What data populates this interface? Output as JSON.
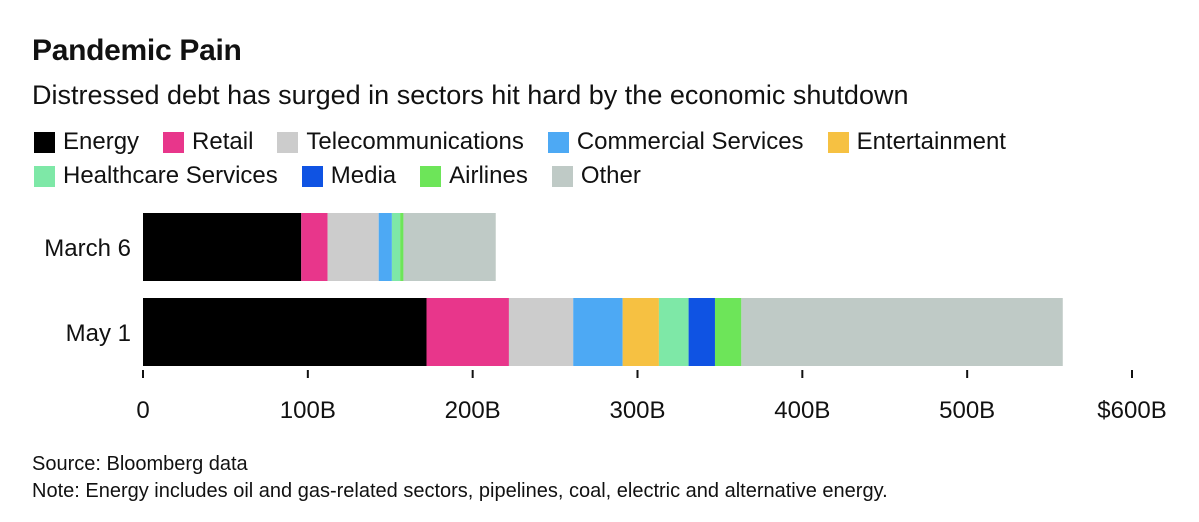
{
  "chart_data": {
    "type": "bar",
    "orientation": "horizontal",
    "stacked": true,
    "title": "Pandemic Pain",
    "subtitle": "Distressed debt has surged in sectors hit hard by the economic shutdown",
    "categories": [
      "March 6",
      "May 1"
    ],
    "series": [
      {
        "name": "Energy",
        "color": "#000000",
        "values": [
          96,
          172
        ]
      },
      {
        "name": "Retail",
        "color": "#e8368b",
        "values": [
          16,
          50
        ]
      },
      {
        "name": "Telecommunications",
        "color": "#cccccc",
        "values": [
          31,
          39
        ]
      },
      {
        "name": "Commercial Services",
        "color": "#4da9f4",
        "values": [
          8,
          30
        ]
      },
      {
        "name": "Entertainment",
        "color": "#f6c142",
        "values": [
          0,
          22
        ]
      },
      {
        "name": "Healthcare Services",
        "color": "#7ee8a7",
        "values": [
          5,
          18
        ]
      },
      {
        "name": "Media",
        "color": "#0f53e3",
        "values": [
          0,
          16
        ]
      },
      {
        "name": "Airlines",
        "color": "#6de559",
        "values": [
          2,
          16
        ]
      },
      {
        "name": "Other",
        "color": "#bfcac6",
        "values": [
          56,
          195
        ]
      }
    ],
    "xlim": [
      0,
      600
    ],
    "xticks": [
      0,
      100,
      200,
      300,
      400,
      500,
      600
    ],
    "xtick_labels": [
      "0",
      "100B",
      "200B",
      "300B",
      "400B",
      "500B",
      "$600B"
    ],
    "legend_placement": "top",
    "grid": false
  },
  "legend_rows": [
    [
      "Energy",
      "Retail",
      "Telecommunications",
      "Commercial Services",
      "Entertainment"
    ],
    [
      "Healthcare Services",
      "Media",
      "Airlines",
      "Other"
    ]
  ],
  "footer": {
    "source": "Source: Bloomberg data",
    "note": "Note: Energy includes oil and gas-related sectors, pipelines, coal, electric and alternative energy."
  }
}
